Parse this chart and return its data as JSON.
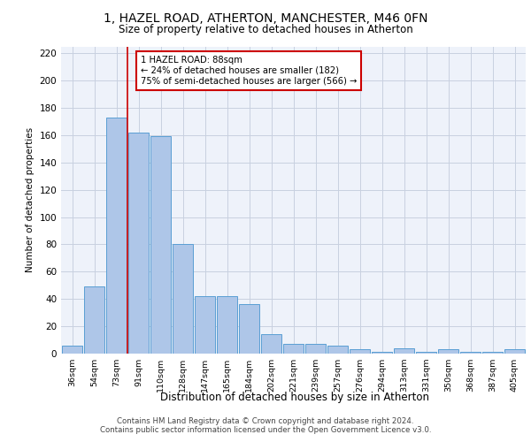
{
  "title_line1": "1, HAZEL ROAD, ATHERTON, MANCHESTER, M46 0FN",
  "title_line2": "Size of property relative to detached houses in Atherton",
  "xlabel": "Distribution of detached houses by size in Atherton",
  "ylabel": "Number of detached properties",
  "bar_labels": [
    "36sqm",
    "54sqm",
    "73sqm",
    "91sqm",
    "110sqm",
    "128sqm",
    "147sqm",
    "165sqm",
    "184sqm",
    "202sqm",
    "221sqm",
    "239sqm",
    "257sqm",
    "276sqm",
    "294sqm",
    "313sqm",
    "331sqm",
    "350sqm",
    "368sqm",
    "387sqm",
    "405sqm"
  ],
  "bar_values": [
    6,
    49,
    173,
    162,
    159,
    80,
    42,
    42,
    36,
    14,
    7,
    7,
    6,
    3,
    1,
    4,
    1,
    3,
    1,
    1,
    3
  ],
  "bar_color": "#aec6e8",
  "bar_edge_color": "#5a9fd4",
  "grid_color": "#c8d0e0",
  "bg_color": "#eef2fa",
  "red_line_x": 2.5,
  "annotation_text": "1 HAZEL ROAD: 88sqm\n← 24% of detached houses are smaller (182)\n75% of semi-detached houses are larger (566) →",
  "annotation_box_color": "#ffffff",
  "annotation_border_color": "#cc0000",
  "footer_line1": "Contains HM Land Registry data © Crown copyright and database right 2024.",
  "footer_line2": "Contains public sector information licensed under the Open Government Licence v3.0.",
  "ylim": [
    0,
    225
  ],
  "yticks": [
    0,
    20,
    40,
    60,
    80,
    100,
    120,
    140,
    160,
    180,
    200,
    220
  ]
}
